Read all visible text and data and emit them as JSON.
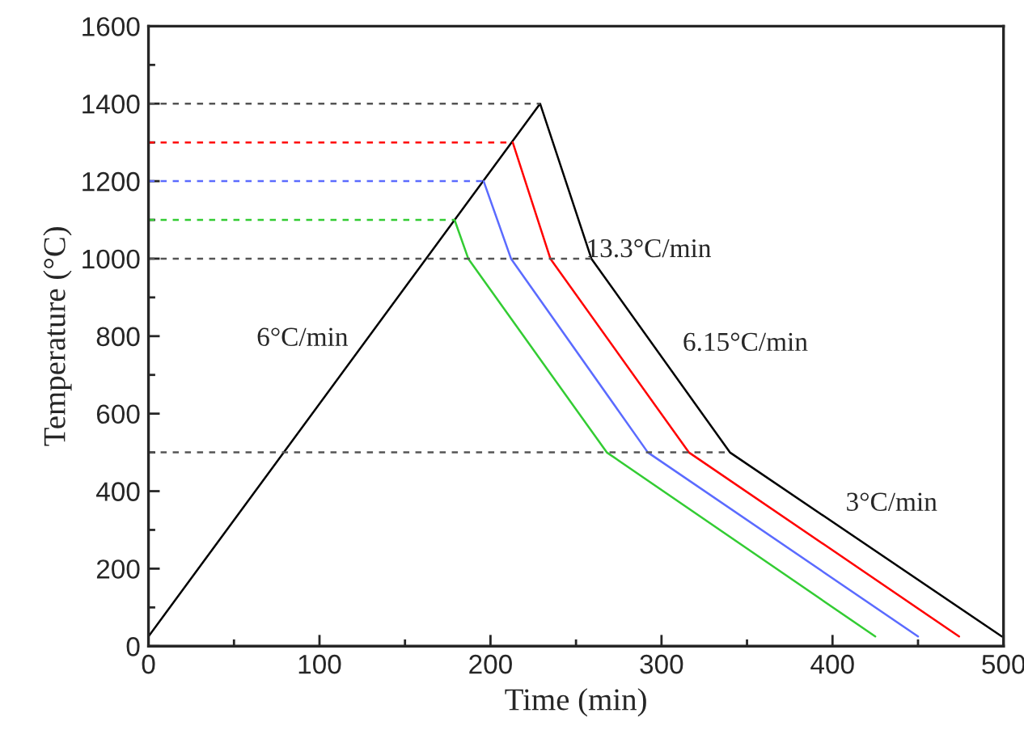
{
  "chart_data": {
    "type": "line",
    "xlabel": "Time (min)",
    "ylabel": "Temperature (°C)",
    "xlim": [
      0,
      500
    ],
    "ylim": [
      0,
      1600
    ],
    "xticks": [
      0,
      100,
      200,
      300,
      400,
      500
    ],
    "yticks": [
      0,
      200,
      400,
      600,
      800,
      1000,
      1200,
      1400,
      1600
    ],
    "grid": false,
    "legend": false,
    "marker": "none",
    "series": [
      {
        "color": "#000000",
        "x": [
          0,
          229,
          259,
          340,
          499
        ],
        "values": [
          25,
          1400,
          1000,
          500,
          25
        ],
        "line_style": "solid"
      },
      {
        "color": "#ff0000",
        "x": [
          213,
          235,
          316,
          474
        ],
        "values": [
          1300,
          1000,
          500,
          25
        ],
        "line_style": "solid"
      },
      {
        "color": "#5b6bff",
        "x": [
          196,
          212,
          292,
          450
        ],
        "values": [
          1200,
          1000,
          500,
          25
        ],
        "line_style": "solid"
      },
      {
        "color": "#33cc33",
        "x": [
          179,
          187,
          268,
          425
        ],
        "values": [
          1100,
          1000,
          500,
          25
        ],
        "line_style": "solid"
      },
      {
        "color": "#555555",
        "x": [
          0,
          229
        ],
        "values": [
          1400,
          1400
        ],
        "line_style": "dashed"
      },
      {
        "color": "#ff0000",
        "x": [
          0,
          213
        ],
        "values": [
          1300,
          1300
        ],
        "line_style": "dashed"
      },
      {
        "color": "#5b6bff",
        "x": [
          0,
          196
        ],
        "values": [
          1200,
          1200
        ],
        "line_style": "dashed"
      },
      {
        "color": "#33cc33",
        "x": [
          0,
          179
        ],
        "values": [
          1100,
          1100
        ],
        "line_style": "dashed"
      },
      {
        "color": "#555555",
        "x": [
          0,
          259
        ],
        "values": [
          1000,
          1000
        ],
        "line_style": "dashed"
      },
      {
        "color": "#555555",
        "x": [
          0,
          340
        ],
        "values": [
          500,
          500
        ],
        "line_style": "dashed"
      }
    ],
    "annotations": [
      "6°C/min",
      "13.3°C/min",
      "6.15°C/min",
      "3°C/min"
    ]
  }
}
